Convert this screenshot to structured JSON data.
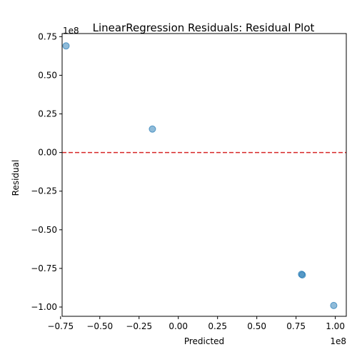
{
  "chart_data": {
    "type": "scatter",
    "title": "LinearRegression Residuals: Residual Plot",
    "xlabel": "Predicted",
    "ylabel": "Residual",
    "x_offset_label": "1e8",
    "y_offset_label": "1e8",
    "xlim": [
      -0.74,
      1.07
    ],
    "ylim": [
      -1.06,
      0.77
    ],
    "x_ticks": [
      -0.75,
      -0.5,
      -0.25,
      0.0,
      0.25,
      0.5,
      0.75,
      1.0
    ],
    "x_tick_labels": [
      "−0.75",
      "−0.50",
      "−0.25",
      "0.00",
      "0.25",
      "0.50",
      "0.75",
      "1.00"
    ],
    "y_ticks": [
      0.75,
      0.5,
      0.25,
      0.0,
      -0.25,
      -0.5,
      -0.75,
      -1.0
    ],
    "y_tick_labels": [
      "0.75",
      "0.50",
      "0.25",
      "0.00",
      "−0.25",
      "−0.50",
      "−0.75",
      "−1.00"
    ],
    "points": [
      {
        "x": -0.715,
        "y": 0.69
      },
      {
        "x": -0.165,
        "y": 0.152
      },
      {
        "x": 0.785,
        "y": -0.788
      },
      {
        "x": 0.79,
        "y": -0.792
      },
      {
        "x": 0.99,
        "y": -0.99
      }
    ],
    "reference_line": {
      "y": 0.0,
      "color": "#d62728",
      "style": "dashed"
    },
    "point_color": "#1f77b4",
    "grid": false,
    "legend": "none"
  }
}
